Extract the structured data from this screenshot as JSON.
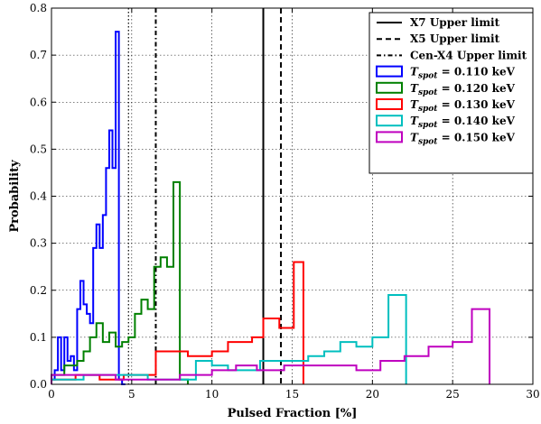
{
  "chart_data": {
    "type": "line",
    "subtype": "step-histogram",
    "xlabel": "Pulsed Fraction [%]",
    "ylabel": "Probability",
    "xlim": [
      0,
      30
    ],
    "ylim": [
      0,
      0.8
    ],
    "xticks": [
      0,
      5,
      10,
      15,
      20,
      25,
      30
    ],
    "xtick_labels": [
      "0",
      "5",
      "10",
      "15",
      "20",
      "25",
      "30"
    ],
    "yticks": [
      0.0,
      0.1,
      0.2,
      0.3,
      0.4,
      0.5,
      0.6,
      0.7,
      0.8
    ],
    "ytick_labels": [
      "0.0",
      "0.1",
      "0.2",
      "0.3",
      "0.4",
      "0.5",
      "0.6",
      "0.7",
      "0.8"
    ],
    "grid": true,
    "legend_position": "top-right",
    "limits": [
      {
        "name": "X7 Upper limit",
        "x": 13.2,
        "style": "solid",
        "color": "#000000"
      },
      {
        "name": "X5 Upper limit",
        "x": 14.3,
        "style": "dashed",
        "color": "#000000"
      },
      {
        "name": "Cen-X4 Upper limit",
        "x": 6.5,
        "style": "dashdot",
        "color": "#000000"
      },
      {
        "name": "",
        "x": 4.8,
        "style": "dotted",
        "color": "#000000"
      }
    ],
    "series": [
      {
        "legend": {
          "prefix": "T",
          "sub": "spot",
          "suffix": " = 0.110 keV"
        },
        "color": "#0000ff",
        "edges": [
          0.0,
          0.2,
          0.4,
          0.6,
          0.8,
          1.0,
          1.2,
          1.4,
          1.6,
          1.8,
          2.0,
          2.2,
          2.4,
          2.6,
          2.8,
          3.0,
          3.2,
          3.4,
          3.6,
          3.8,
          4.0,
          4.2,
          4.4,
          4.6
        ],
        "values": [
          0.01,
          0.03,
          0.1,
          0.03,
          0.1,
          0.05,
          0.06,
          0.03,
          0.16,
          0.22,
          0.17,
          0.15,
          0.13,
          0.29,
          0.34,
          0.29,
          0.36,
          0.46,
          0.54,
          0.46,
          0.75,
          0.01,
          0.0
        ]
      },
      {
        "legend": {
          "prefix": "T",
          "sub": "spot",
          "suffix": " = 0.120 keV"
        },
        "color": "#008000",
        "edges": [
          0.0,
          0.8,
          1.6,
          2.0,
          2.4,
          2.8,
          3.2,
          3.6,
          4.0,
          4.4,
          4.8,
          5.2,
          5.6,
          6.0,
          6.4,
          6.8,
          7.2,
          7.6,
          8.0,
          8.5
        ],
        "values": [
          0.02,
          0.04,
          0.05,
          0.07,
          0.1,
          0.13,
          0.09,
          0.11,
          0.08,
          0.09,
          0.1,
          0.15,
          0.18,
          0.16,
          0.25,
          0.27,
          0.25,
          0.43,
          0.01
        ],
        "end": 8.5
      },
      {
        "legend": {
          "prefix": "T",
          "sub": "spot",
          "suffix": " = 0.130 keV"
        },
        "color": "#ff0000",
        "edges": [
          0.0,
          1.5,
          3.0,
          4.5,
          6.5,
          8.5,
          10.0,
          11.0,
          12.5,
          13.2,
          14.2,
          15.1,
          15.7
        ],
        "values": [
          0.01,
          0.02,
          0.01,
          0.02,
          0.07,
          0.06,
          0.07,
          0.09,
          0.1,
          0.14,
          0.12,
          0.26
        ],
        "end": 15.7
      },
      {
        "legend": {
          "prefix": "T",
          "sub": "spot",
          "suffix": " = 0.140 keV"
        },
        "color": "#00bfbf",
        "edges": [
          0.0,
          2.0,
          6.0,
          9.0,
          10.0,
          11.0,
          13.0,
          15.0,
          16.0,
          17.0,
          18.0,
          19.0,
          20.0,
          21.0,
          22.1
        ],
        "values": [
          0.01,
          0.02,
          0.01,
          0.05,
          0.04,
          0.03,
          0.05,
          0.05,
          0.06,
          0.07,
          0.09,
          0.08,
          0.1,
          0.19
        ],
        "end": 22.1
      },
      {
        "legend": {
          "prefix": "T",
          "sub": "spot",
          "suffix": " = 0.150 keV"
        },
        "color": "#bf00bf",
        "edges": [
          0.0,
          4.0,
          8.0,
          10.0,
          11.5,
          12.8,
          14.5,
          16.0,
          17.5,
          19.0,
          20.5,
          22.0,
          23.5,
          25.0,
          26.2,
          27.3
        ],
        "values": [
          0.02,
          0.01,
          0.02,
          0.03,
          0.04,
          0.03,
          0.04,
          0.04,
          0.04,
          0.03,
          0.05,
          0.06,
          0.08,
          0.09,
          0.16
        ],
        "end": 27.3
      }
    ]
  }
}
